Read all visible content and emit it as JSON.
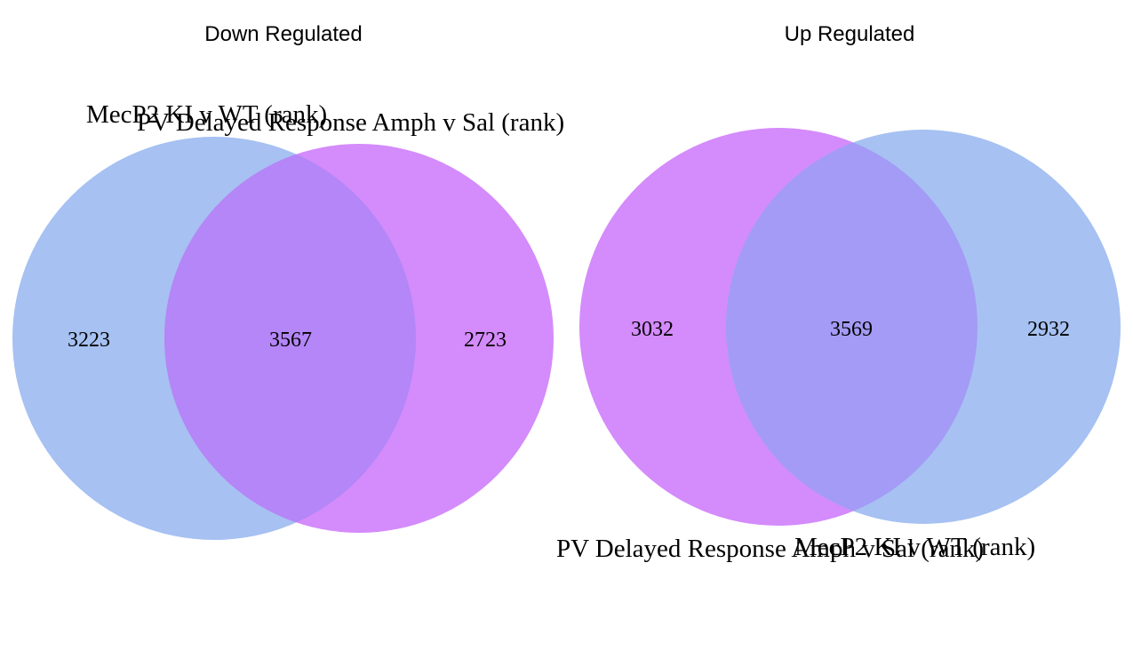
{
  "colors": {
    "mecp2": "#a6c1f2",
    "pv": "#d48bfb",
    "overlap_down": "#b486f7",
    "overlap_up": "#a39bf5"
  },
  "panels": [
    {
      "title": "Down Regulated",
      "sets": [
        "MecP2 KI v WT (rank)",
        "PV Delayed Response Amph v Sal (rank)"
      ],
      "counts": {
        "mecp2_only": "3223",
        "both": "3567",
        "pv_only": "2723"
      }
    },
    {
      "title": "Up Regulated",
      "sets": [
        "PV Delayed Response Amph v Sal (rank)",
        "MecP2 KI v WT (rank)"
      ],
      "counts": {
        "pv_only": "3032",
        "both": "3569",
        "mecp2_only": "2932"
      }
    }
  ]
}
